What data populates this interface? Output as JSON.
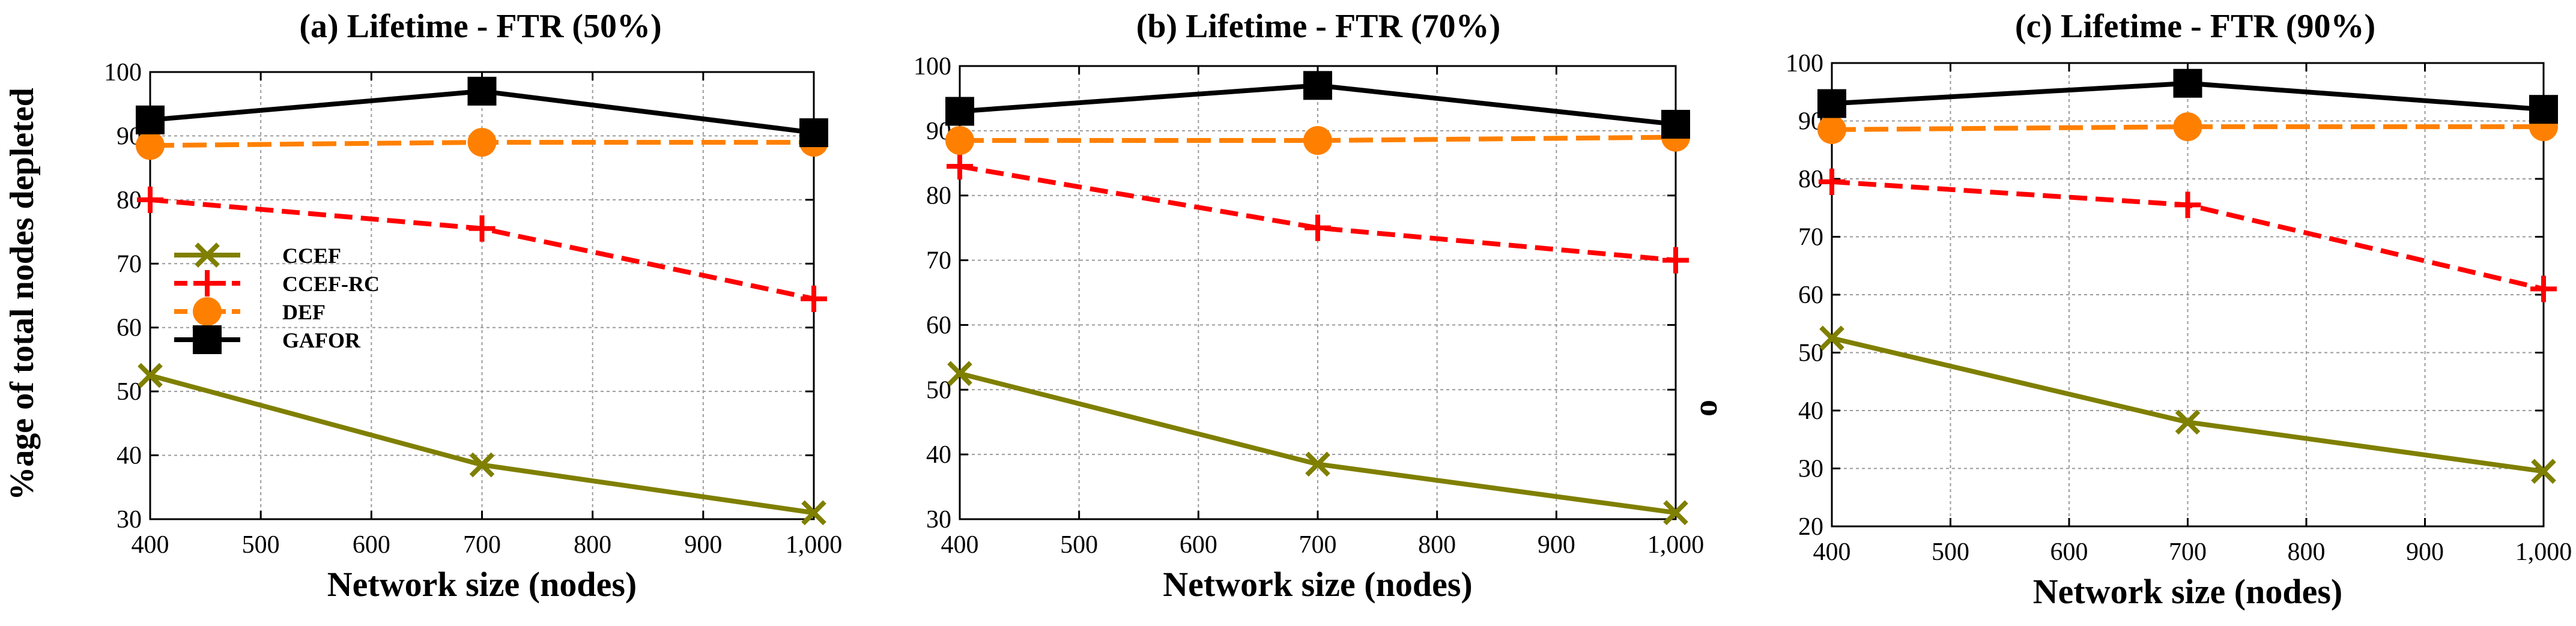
{
  "chart_data": [
    {
      "type": "line",
      "title": "(a) Lifetime - FTR (50%)",
      "xlabel": "Network size (nodes)",
      "ylabel": "%age of total nodes depleted",
      "x": [
        400,
        700,
        1000
      ],
      "xticks": [
        "400",
        "500",
        "600",
        "700",
        "800",
        "900",
        "1,000"
      ],
      "xlim": [
        400,
        1000
      ],
      "ylim": [
        30,
        100
      ],
      "yticks": [
        "30",
        "40",
        "50",
        "60",
        "70",
        "80",
        "90",
        "100"
      ],
      "legend": "center-left",
      "grid": true,
      "series": [
        {
          "name": "CCEF",
          "values": [
            52.5,
            38.5,
            31
          ],
          "color": "#7f7f00",
          "marker": "x",
          "dash": "solid"
        },
        {
          "name": "CCEF-RC",
          "values": [
            80,
            75.5,
            64.5
          ],
          "color": "#ff0000",
          "marker": "plus",
          "dash": "dashed"
        },
        {
          "name": "DEF",
          "values": [
            88.5,
            89,
            89
          ],
          "color": "#ff8000",
          "marker": "circle",
          "dash": "longdash"
        },
        {
          "name": "GAFOR",
          "values": [
            92.5,
            97,
            90.5
          ],
          "color": "#000000",
          "marker": "square",
          "dash": "solid"
        }
      ]
    },
    {
      "type": "line",
      "title": "(b) Lifetime - FTR (70%)",
      "xlabel": "Network size (nodes)",
      "ylabel": "",
      "x": [
        400,
        700,
        1000
      ],
      "xticks": [
        "400",
        "500",
        "600",
        "700",
        "800",
        "900",
        "1,000"
      ],
      "xlim": [
        400,
        1000
      ],
      "ylim": [
        30,
        100
      ],
      "yticks": [
        "30",
        "40",
        "50",
        "60",
        "70",
        "80",
        "90",
        "100"
      ],
      "legend": "none",
      "grid": true,
      "series": [
        {
          "name": "CCEF",
          "values": [
            52.5,
            38.5,
            31
          ],
          "color": "#7f7f00",
          "marker": "x",
          "dash": "solid"
        },
        {
          "name": "CCEF-RC",
          "values": [
            84.5,
            75,
            70
          ],
          "color": "#ff0000",
          "marker": "plus",
          "dash": "dashed"
        },
        {
          "name": "DEF",
          "values": [
            88.5,
            88.5,
            89
          ],
          "color": "#ff8000",
          "marker": "circle",
          "dash": "longdash"
        },
        {
          "name": "GAFOR",
          "values": [
            93,
            97,
            91
          ],
          "color": "#000000",
          "marker": "square",
          "dash": "solid"
        }
      ]
    },
    {
      "type": "line",
      "title": "(c) Lifetime - FTR (90%)",
      "xlabel": "Network size (nodes)",
      "ylabel": "o",
      "x": [
        400,
        700,
        1000
      ],
      "xticks": [
        "400",
        "500",
        "600",
        "700",
        "800",
        "900",
        "1,000"
      ],
      "xlim": [
        400,
        1000
      ],
      "ylim": [
        20,
        100
      ],
      "yticks": [
        "20",
        "30",
        "40",
        "50",
        "60",
        "70",
        "80",
        "90",
        "100"
      ],
      "legend": "none",
      "grid": true,
      "series": [
        {
          "name": "CCEF",
          "values": [
            52.5,
            38,
            29.5
          ],
          "color": "#7f7f00",
          "marker": "x",
          "dash": "solid"
        },
        {
          "name": "CCEF-RC",
          "values": [
            79.5,
            75.5,
            61
          ],
          "color": "#ff0000",
          "marker": "plus",
          "dash": "dashed"
        },
        {
          "name": "DEF",
          "values": [
            88.5,
            89,
            89
          ],
          "color": "#ff8000",
          "marker": "circle",
          "dash": "longdash"
        },
        {
          "name": "GAFOR",
          "values": [
            93,
            96.5,
            92
          ],
          "color": "#000000",
          "marker": "square",
          "dash": "solid"
        }
      ]
    }
  ]
}
